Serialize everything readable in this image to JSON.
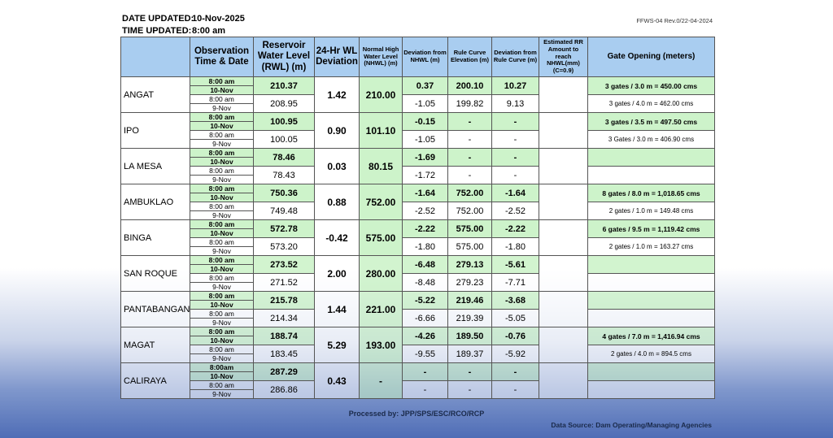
{
  "header": {
    "date_label": "DATE UPDATED:",
    "date_value": "10-Nov-2025",
    "time_label": "TIME UPDATED:",
    "time_value": "8:00 am",
    "form_ref": "FFWS-04 Rev.0/22-04-2024"
  },
  "columns": {
    "observation": "Observation Time & Date",
    "rwl": "Reservoir Water Level (RWL) (m)",
    "deviation24": "24-Hr WL Deviation",
    "nhwl": "Normal High Water Level (NHWL) (m)",
    "dev_nhwl": "Deviation from NHWL (m)",
    "rule_curve": "Rule Curve Elevation (m)",
    "dev_rule": "Deviation from Rule Curve (m)",
    "est_rr": "Estimated RR Amount to reach NHWL(mm) (C=0.9)",
    "gate": "Gate Opening (meters)"
  },
  "dams": [
    {
      "name": "ANGAT",
      "cur_time": "8:00 am",
      "cur_date": "10-Nov",
      "prev_time": "8:00 am",
      "prev_date": "9-Nov",
      "rwl_cur": "210.37",
      "rwl_prev": "208.95",
      "dev24": "1.42",
      "nhwl": "210.00",
      "dn_cur": "0.37",
      "dn_prev": "-1.05",
      "rc_cur": "200.10",
      "rc_prev": "199.82",
      "dr_cur": "10.27",
      "dr_prev": "9.13",
      "rr": "",
      "gate_cur": "3 gates / 3.0 m = 450.00 cms",
      "gate_prev": "3 gates / 4.0 m = 462.00 cms"
    },
    {
      "name": "IPO",
      "cur_time": "8:00 am",
      "cur_date": "10-Nov",
      "prev_time": "8:00 am",
      "prev_date": "9-Nov",
      "rwl_cur": "100.95",
      "rwl_prev": "100.05",
      "dev24": "0.90",
      "nhwl": "101.10",
      "dn_cur": "-0.15",
      "dn_prev": "-1.05",
      "rc_cur": "-",
      "rc_prev": "-",
      "dr_cur": "-",
      "dr_prev": "-",
      "rr": "",
      "gate_cur": "3 gates / 3.5 m = 497.50 cms",
      "gate_prev": "3 Gates / 3.0 m = 406.90 cms"
    },
    {
      "name": "LA MESA",
      "cur_time": "8:00 am",
      "cur_date": "10-Nov",
      "prev_time": "8:00 am",
      "prev_date": "9-Nov",
      "rwl_cur": "78.46",
      "rwl_prev": "78.43",
      "dev24": "0.03",
      "nhwl": "80.15",
      "dn_cur": "-1.69",
      "dn_prev": "-1.72",
      "rc_cur": "-",
      "rc_prev": "-",
      "dr_cur": "-",
      "dr_prev": "-",
      "rr": "",
      "gate_cur": "",
      "gate_prev": ""
    },
    {
      "name": "AMBUKLAO",
      "cur_time": "8:00 am",
      "cur_date": "10-Nov",
      "prev_time": "8:00 am",
      "prev_date": "9-Nov",
      "rwl_cur": "750.36",
      "rwl_prev": "749.48",
      "dev24": "0.88",
      "nhwl": "752.00",
      "dn_cur": "-1.64",
      "dn_prev": "-2.52",
      "rc_cur": "752.00",
      "rc_prev": "752.00",
      "dr_cur": "-1.64",
      "dr_prev": "-2.52",
      "rr": "",
      "gate_cur": "8 gates / 8.0 m = 1,018.65 cms",
      "gate_prev": "2 gates / 1.0 m = 149.48 cms"
    },
    {
      "name": "BINGA",
      "cur_time": "8:00 am",
      "cur_date": "10-Nov",
      "prev_time": "8:00 am",
      "prev_date": "9-Nov",
      "rwl_cur": "572.78",
      "rwl_prev": "573.20",
      "dev24": "-0.42",
      "nhwl": "575.00",
      "dn_cur": "-2.22",
      "dn_prev": "-1.80",
      "rc_cur": "575.00",
      "rc_prev": "575.00",
      "dr_cur": "-2.22",
      "dr_prev": "-1.80",
      "rr": "",
      "gate_cur": "6 gates / 9.5 m = 1,119.42 cms",
      "gate_prev": "2 gates / 1.0 m = 163.27 cms"
    },
    {
      "name": "SAN ROQUE",
      "cur_time": "8:00 am",
      "cur_date": "10-Nov",
      "prev_time": "8:00 am",
      "prev_date": "9-Nov",
      "rwl_cur": "273.52",
      "rwl_prev": "271.52",
      "dev24": "2.00",
      "nhwl": "280.00",
      "dn_cur": "-6.48",
      "dn_prev": "-8.48",
      "rc_cur": "279.13",
      "rc_prev": "279.23",
      "dr_cur": "-5.61",
      "dr_prev": "-7.71",
      "rr": "",
      "gate_cur": "",
      "gate_prev": ""
    },
    {
      "name": "PANTABANGAN",
      "cur_time": "8:00 am",
      "cur_date": "10-Nov",
      "prev_time": "8:00 am",
      "prev_date": "9-Nov",
      "rwl_cur": "215.78",
      "rwl_prev": "214.34",
      "dev24": "1.44",
      "nhwl": "221.00",
      "dn_cur": "-5.22",
      "dn_prev": "-6.66",
      "rc_cur": "219.46",
      "rc_prev": "219.39",
      "dr_cur": "-3.68",
      "dr_prev": "-5.05",
      "rr": "",
      "gate_cur": "",
      "gate_prev": ""
    },
    {
      "name": "MAGAT",
      "cur_time": "8:00 am",
      "cur_date": "10-Nov",
      "prev_time": "8:00 am",
      "prev_date": "9-Nov",
      "rwl_cur": "188.74",
      "rwl_prev": "183.45",
      "dev24": "5.29",
      "nhwl": "193.00",
      "dn_cur": "-4.26",
      "dn_prev": "-9.55",
      "rc_cur": "189.50",
      "rc_prev": "189.37",
      "dr_cur": "-0.76",
      "dr_prev": "-5.92",
      "rr": "",
      "gate_cur": "4 gates / 7.0 m = 1,416.94 cms",
      "gate_prev": "2 gates / 4.0 m = 894.5 cms"
    },
    {
      "name": "CALIRAYA",
      "cur_time": "8:00am",
      "cur_date": "10-Nov",
      "prev_time": "8:00 am",
      "prev_date": "9-Nov",
      "rwl_cur": "287.29",
      "rwl_prev": "286.86",
      "dev24": "0.43",
      "nhwl": "-",
      "dn_cur": "-",
      "dn_prev": "-",
      "rc_cur": "-",
      "rc_prev": "-",
      "dr_cur": "-",
      "dr_prev": "-",
      "rr": "",
      "gate_cur": "",
      "gate_prev": ""
    }
  ],
  "footer": {
    "processed_by": "Processed by: JPP/SPS/ESC/RCO/RCP",
    "data_source": "Data Source: Dam Operating/Managing Agencies"
  }
}
